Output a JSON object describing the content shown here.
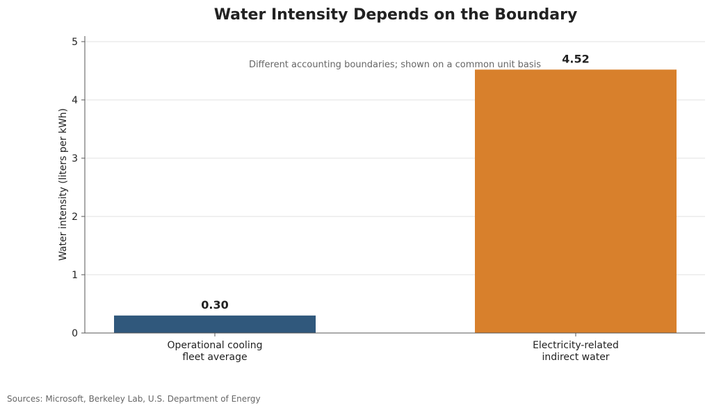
{
  "chart_data": {
    "type": "bar",
    "title": "Water Intensity Depends on the Boundary",
    "subtitle": "Different accounting boundaries; shown on a common unit basis",
    "ylabel": "Water intensity (liters per kWh)",
    "xlabel": "",
    "ylim": [
      0,
      5
    ],
    "yticks": [
      0,
      1,
      2,
      3,
      4,
      5
    ],
    "grid": "horizontal",
    "categories": [
      [
        "Operational cooling",
        "fleet average"
      ],
      [
        "Electricity-related",
        "indirect water"
      ]
    ],
    "values": [
      0.3,
      4.52
    ],
    "value_labels": [
      "0.30",
      "4.52"
    ],
    "colors": [
      "#30587c",
      "#d8802c"
    ]
  },
  "source_note": "Sources: Microsoft, Berkeley Lab, U.S. Department of Energy"
}
